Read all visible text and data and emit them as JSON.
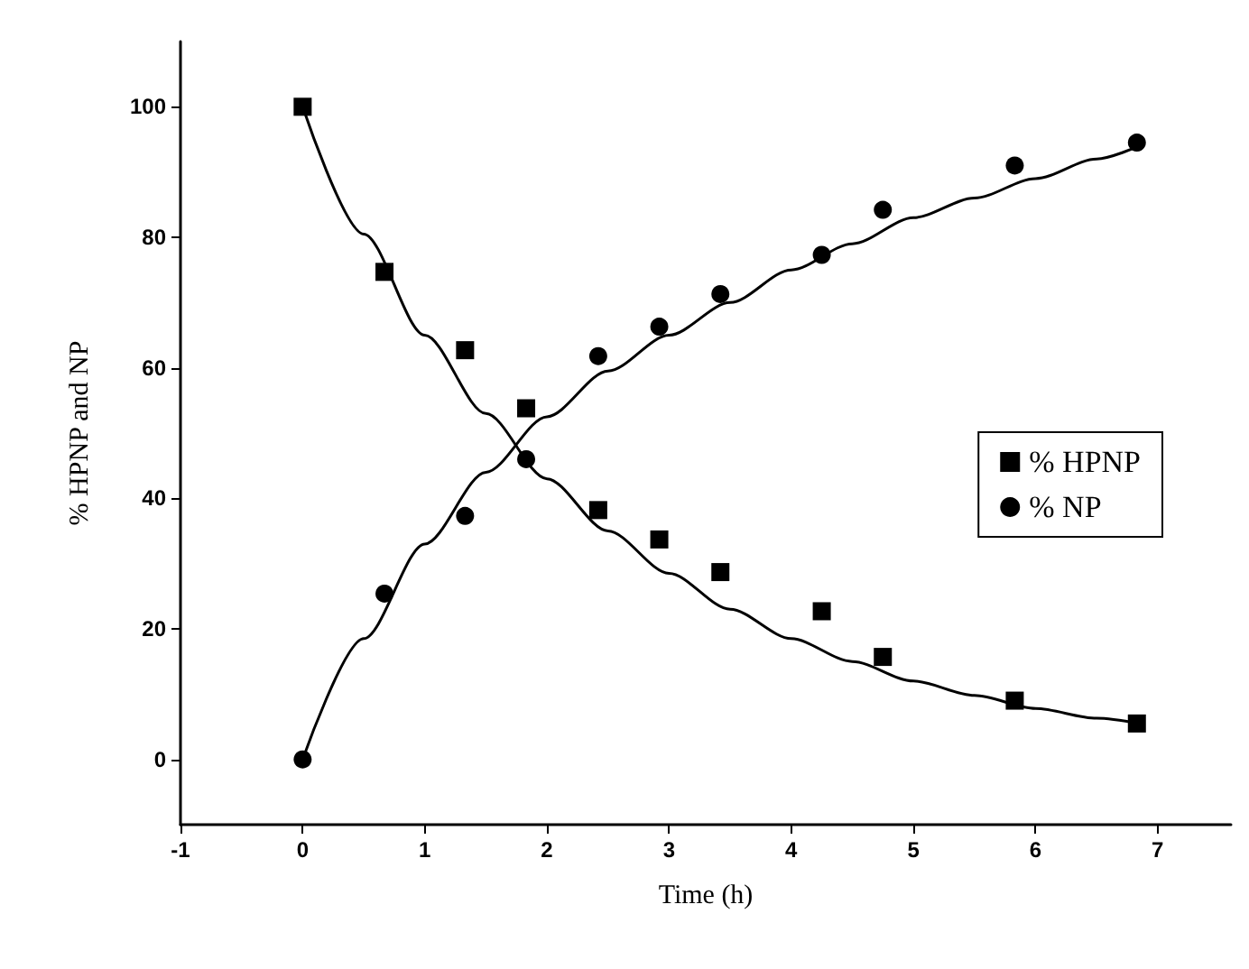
{
  "chart_data": {
    "type": "scatter",
    "xlabel": "Time (h)",
    "ylabel": "% HPNP and NP",
    "xlim": [
      -1,
      7.6
    ],
    "xticks": [
      -1,
      0,
      1,
      2,
      3,
      4,
      5,
      6,
      7
    ],
    "ylim": [
      -10,
      110
    ],
    "yticks": [
      0,
      20,
      40,
      60,
      80,
      100
    ],
    "grid": false,
    "legend": "right",
    "series": [
      {
        "name": "% HPNP",
        "color": "#000000",
        "marker": "square",
        "x": [
          0,
          0.67,
          1.33,
          1.83,
          2.42,
          2.92,
          3.42,
          4.25,
          4.75,
          5.83,
          6.83
        ],
        "values": [
          100,
          74.7,
          62.7,
          53.8,
          38.2,
          33.7,
          28.7,
          22.7,
          15.7,
          9,
          5.5
        ]
      },
      {
        "name": "% NP",
        "color": "#000000",
        "marker": "circle",
        "x": [
          0,
          0.67,
          1.33,
          1.83,
          2.42,
          2.92,
          3.42,
          4.25,
          4.75,
          5.83,
          6.83
        ],
        "values": [
          0,
          25.4,
          37.3,
          46,
          61.8,
          66.3,
          71.3,
          77.3,
          84.2,
          91,
          94.5
        ]
      },
      {
        "type": "line",
        "color": "#000000",
        "marker": "none",
        "line_style": "solid",
        "x": [
          0,
          0.5,
          1,
          1.5,
          2,
          2.5,
          3,
          3.5,
          4,
          4.5,
          5,
          5.5,
          6,
          6.5,
          6.85
        ],
        "values": [
          100,
          80.5,
          65,
          53,
          43,
          35,
          28.5,
          23,
          18.5,
          15,
          12,
          9.8,
          7.8,
          6.3,
          5.5
        ]
      },
      {
        "type": "line",
        "color": "#000000",
        "marker": "none",
        "line_style": "solid",
        "x": [
          0,
          0.5,
          1,
          1.5,
          2,
          2.5,
          3,
          3.5,
          4,
          4.5,
          5,
          5.5,
          6,
          6.5,
          6.85
        ],
        "values": [
          0,
          18.5,
          33,
          44,
          52.5,
          59.5,
          65,
          70,
          75,
          79,
          83,
          86,
          89,
          92,
          94
        ]
      }
    ]
  }
}
